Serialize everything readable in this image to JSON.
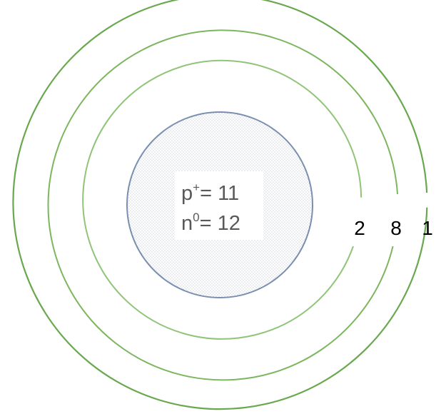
{
  "atom": {
    "nucleus": {
      "protons_symbol": "p",
      "protons_charge": "+",
      "protons_value": "= 11",
      "neutrons_symbol": "n",
      "neutrons_charge": "0",
      "neutrons_value": "= 12"
    },
    "shells": [
      {
        "electrons": "2"
      },
      {
        "electrons": "8"
      },
      {
        "electrons": "1"
      }
    ]
  },
  "colors": {
    "shell_inner": "#8fc479",
    "shell_middle": "#7db65f",
    "shell_outer": "#6aa84f",
    "nucleus_stroke": "#7a8fb0",
    "nucleus_dots": "#9aa3b3",
    "text_nucleus": "#595959",
    "text_shell": "#000000"
  }
}
